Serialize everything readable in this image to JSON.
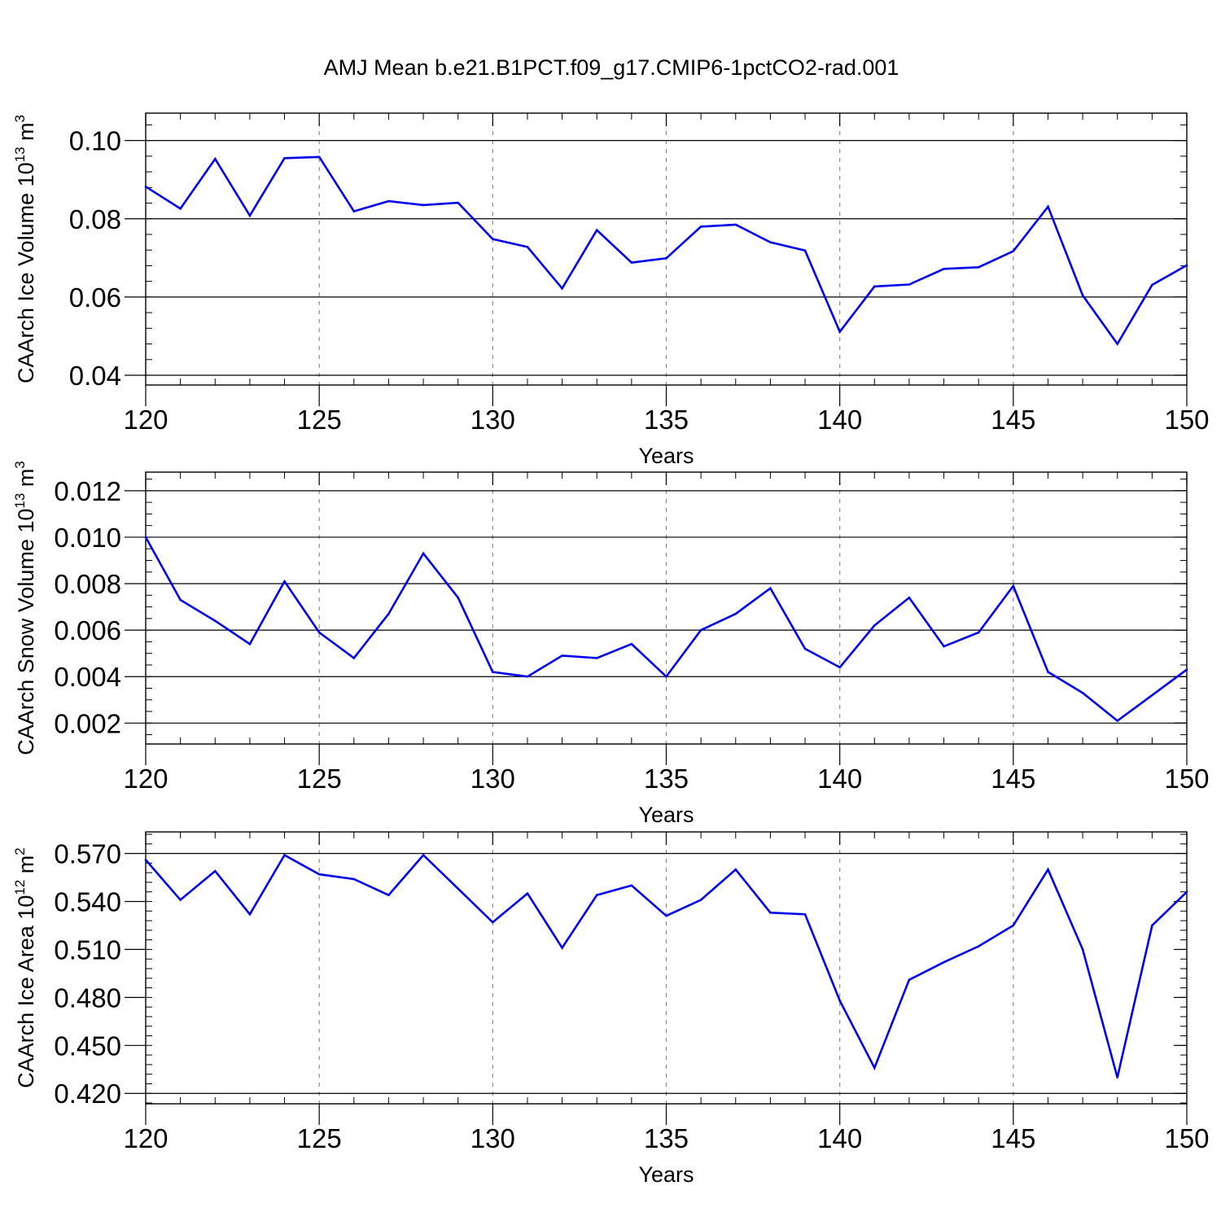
{
  "title": "AMJ Mean b.e21.B1PCT.f09_g17.CMIP6-1pctCO2-rad.001",
  "chart_data": [
    {
      "type": "line",
      "xlabel": "Years",
      "ylabel": {
        "main": "CAArch Ice Volume 10",
        "exp": "13",
        "unit": " m",
        "unit_exp": "3"
      },
      "xlim": [
        120,
        150
      ],
      "ylim": [
        0.0375,
        0.107
      ],
      "xticks": [
        120,
        125,
        130,
        135,
        140,
        145,
        150
      ],
      "xtick_labels": [
        "120",
        "125",
        "130",
        "135",
        "140",
        "145",
        "150"
      ],
      "yticks": [
        0.04,
        0.06,
        0.08,
        0.1
      ],
      "ytick_labels": [
        "0.04",
        "0.06",
        "0.08",
        "0.10"
      ],
      "yminor_step": 0.004,
      "grid_x": [
        125,
        130,
        135,
        140,
        145
      ],
      "reference_y": [
        0.04,
        0.06,
        0.08,
        0.1
      ],
      "color": "#0000ee",
      "series": [
        {
          "x": [
            120,
            121,
            122,
            123,
            124,
            125,
            126,
            127,
            128,
            129,
            130,
            131,
            132,
            133,
            134,
            135,
            136,
            137,
            138,
            139,
            140,
            141,
            142,
            143,
            144,
            145,
            146,
            147,
            148,
            149,
            150
          ],
          "values": [
            0.0882,
            0.0826,
            0.0953,
            0.0808,
            0.0955,
            0.0958,
            0.0819,
            0.0845,
            0.0835,
            0.0841,
            0.0748,
            0.0728,
            0.0622,
            0.0771,
            0.0688,
            0.0699,
            0.078,
            0.0785,
            0.074,
            0.0719,
            0.0511,
            0.0627,
            0.0632,
            0.0672,
            0.0676,
            0.0717,
            0.0831,
            0.0604,
            0.048,
            0.0631,
            0.0681
          ]
        }
      ]
    },
    {
      "type": "line",
      "xlabel": "Years",
      "ylabel": {
        "main": "CAArch Snow Volume 10",
        "exp": "13",
        "unit": " m",
        "unit_exp": "3"
      },
      "xlim": [
        120,
        150
      ],
      "ylim": [
        0.0011,
        0.0128
      ],
      "xticks": [
        120,
        125,
        130,
        135,
        140,
        145,
        150
      ],
      "xtick_labels": [
        "120",
        "125",
        "130",
        "135",
        "140",
        "145",
        "150"
      ],
      "yticks": [
        0.002,
        0.004,
        0.006,
        0.008,
        0.01,
        0.012
      ],
      "ytick_labels": [
        "0.002",
        "0.004",
        "0.006",
        "0.008",
        "0.010",
        "0.012"
      ],
      "yminor_step": 0.0005,
      "grid_x": [
        125,
        130,
        135,
        140,
        145
      ],
      "reference_y": [
        0.002,
        0.004,
        0.006,
        0.008,
        0.01,
        0.012
      ],
      "color": "#0000ee",
      "series": [
        {
          "x": [
            120,
            121,
            122,
            123,
            124,
            125,
            126,
            127,
            128,
            129,
            130,
            131,
            132,
            133,
            134,
            135,
            136,
            137,
            138,
            139,
            140,
            141,
            142,
            143,
            144,
            145,
            146,
            147,
            148,
            149,
            150
          ],
          "values": [
            0.01,
            0.0073,
            0.0064,
            0.0054,
            0.0081,
            0.0059,
            0.0048,
            0.0067,
            0.0093,
            0.0074,
            0.0042,
            0.004,
            0.0049,
            0.0048,
            0.0054,
            0.004,
            0.006,
            0.0067,
            0.0078,
            0.0052,
            0.0044,
            0.0062,
            0.0074,
            0.0053,
            0.0059,
            0.0079,
            0.0042,
            0.0033,
            0.0021,
            0.0032,
            0.0043
          ]
        }
      ]
    },
    {
      "type": "line",
      "xlabel": "Years",
      "ylabel": {
        "main": "CAArch Ice Area 10",
        "exp": "12",
        "unit": " m",
        "unit_exp": "2"
      },
      "xlim": [
        120,
        150
      ],
      "ylim": [
        0.4135,
        0.5835
      ],
      "xticks": [
        120,
        125,
        130,
        135,
        140,
        145,
        150
      ],
      "xtick_labels": [
        "120",
        "125",
        "130",
        "135",
        "140",
        "145",
        "150"
      ],
      "yticks": [
        0.42,
        0.45,
        0.48,
        0.51,
        0.54,
        0.57
      ],
      "ytick_labels": [
        "0.420",
        "0.450",
        "0.480",
        "0.510",
        "0.540",
        "0.570"
      ],
      "yminor_step": 0.006,
      "grid_x": [
        125,
        130,
        135,
        140,
        145
      ],
      "reference_y": [
        0.42,
        0.57
      ],
      "color": "#0000ee",
      "series": [
        {
          "x": [
            120,
            121,
            122,
            123,
            124,
            125,
            126,
            127,
            128,
            129,
            130,
            131,
            132,
            133,
            134,
            135,
            136,
            137,
            138,
            139,
            140,
            141,
            142,
            143,
            144,
            145,
            146,
            147,
            148,
            149,
            150
          ],
          "values": [
            0.566,
            0.541,
            0.559,
            0.532,
            0.569,
            0.557,
            0.554,
            0.544,
            0.569,
            0.548,
            0.527,
            0.545,
            0.511,
            0.544,
            0.55,
            0.531,
            0.541,
            0.56,
            0.533,
            0.532,
            0.478,
            0.436,
            0.491,
            0.502,
            0.512,
            0.525,
            0.56,
            0.51,
            0.43,
            0.525,
            0.546
          ]
        }
      ]
    }
  ]
}
